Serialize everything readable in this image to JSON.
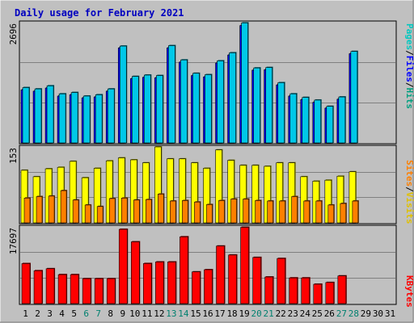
{
  "chart_data": {
    "type": "bar",
    "title": "Daily usage for February 2021",
    "categories": [
      "1",
      "2",
      "3",
      "4",
      "5",
      "6",
      "7",
      "8",
      "9",
      "10",
      "11",
      "12",
      "13",
      "14",
      "15",
      "16",
      "17",
      "18",
      "19",
      "20",
      "21",
      "22",
      "23",
      "24",
      "25",
      "26",
      "27",
      "28",
      "29",
      "30",
      "31"
    ],
    "weekend_days": [
      "6",
      "7",
      "13",
      "14",
      "20",
      "21",
      "27",
      "28"
    ],
    "panels": {
      "hits_files": {
        "ymax_label": "2696",
        "ymax": 2696,
        "grid": true,
        "right_label": {
          "parts": [
            "Pages",
            "/",
            "Files",
            "/",
            "Hits"
          ]
        },
        "series": [
          {
            "name": "Hits",
            "color": "#00c8e8",
            "values": [
              1240,
              1210,
              1280,
              1100,
              1130,
              1050,
              1080,
              1210,
              2170,
              1490,
              1520,
              1510,
              2180,
              1860,
              1560,
              1530,
              1840,
              2020,
              2690,
              1680,
              1690,
              1350,
              1100,
              1020,
              960,
              820,
              1030,
              2050,
              0,
              0,
              0
            ]
          },
          {
            "name": "Files",
            "color": "#0000ff",
            "values": [
              1190,
              1160,
              1230,
              1050,
              1080,
              1010,
              1030,
              1160,
              2130,
              1440,
              1470,
              1460,
              2130,
              1810,
              1510,
              1480,
              1790,
              1970,
              2630,
              1630,
              1640,
              1300,
              1050,
              970,
              910,
              780,
              980,
              2000,
              0,
              0,
              0
            ]
          },
          {
            "name": "Pages",
            "color": "#00c8c0",
            "values": [
              210,
              190,
              230,
              180,
              170,
              160,
              150,
              190,
              310,
              230,
              240,
              230,
              320,
              270,
              240,
              230,
              280,
              300,
              390,
              250,
              260,
              210,
              180,
              160,
              150,
              130,
              160,
              300,
              0,
              0,
              0
            ]
          }
        ]
      },
      "visits_sites": {
        "ymax_label": "153",
        "ymax": 153,
        "grid": true,
        "right_label": {
          "parts": [
            "Sites",
            "/",
            "Visits"
          ]
        },
        "series": [
          {
            "name": "Visits",
            "color": "#ffff00",
            "values": [
              106,
              93,
              109,
              112,
              124,
              91,
              110,
              125,
              131,
              127,
              121,
              153,
              129,
              129,
              121,
              110,
              147,
              126,
              116,
              116,
              114,
              121,
              121,
              93,
              84,
              86,
              94,
              103,
              0,
              0,
              0
            ]
          },
          {
            "name": "Sites",
            "color": "#ff8000",
            "values": [
              50,
              53,
              54,
              65,
              46,
              36,
              33,
              49,
              50,
              46,
              47,
              58,
              44,
              45,
              42,
              37,
              45,
              48,
              48,
              45,
              44,
              44,
              53,
              44,
              44,
              36,
              39,
              44,
              0,
              0,
              0
            ]
          }
        ]
      },
      "kbytes": {
        "ymax_label": "17697",
        "ymax": 17697,
        "grid": true,
        "right_label": {
          "parts": [
            "KBytes"
          ]
        },
        "series": [
          {
            "name": "KBytes",
            "color": "#ff0000",
            "values": [
              9230,
              7590,
              8050,
              6690,
              6690,
              5760,
              5760,
              5760,
              17130,
              14250,
              9250,
              9610,
              9610,
              15410,
              7320,
              7820,
              13280,
              11210,
              17600,
              10650,
              6140,
              10410,
              5930,
              5930,
              4470,
              4870,
              6390,
              0,
              0,
              0,
              0
            ]
          }
        ]
      }
    }
  }
}
